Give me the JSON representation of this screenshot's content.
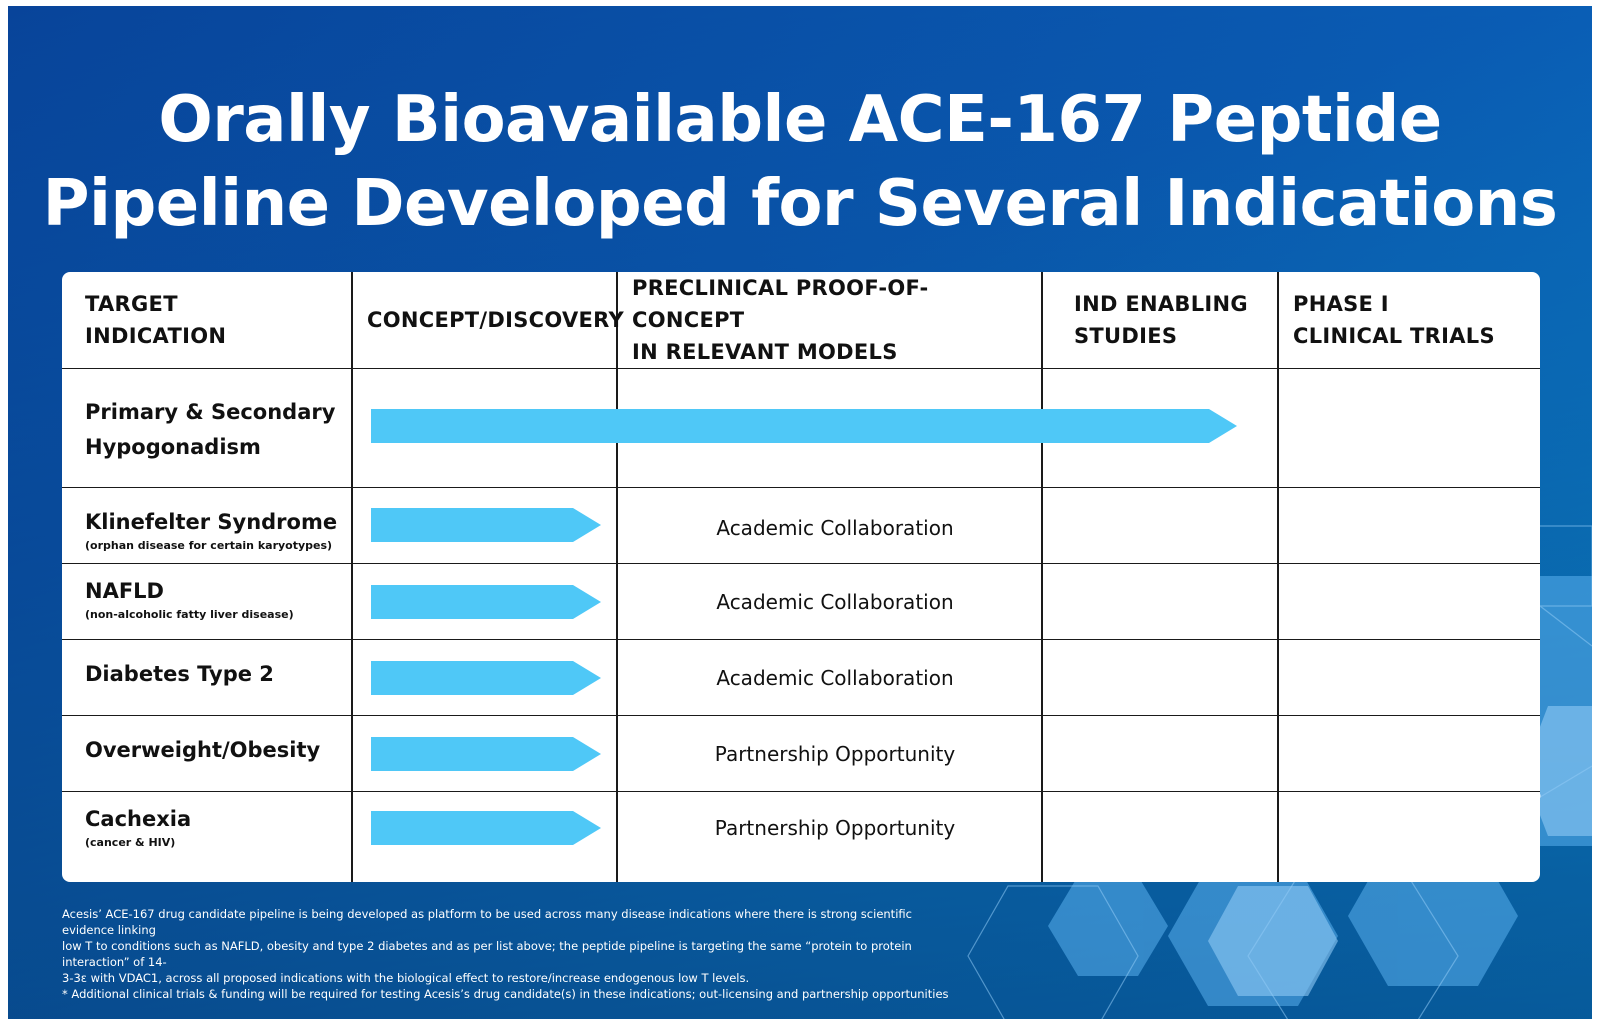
{
  "title": {
    "line1": "Orally Bioavailable ACE-167 Peptide",
    "line2": "Pipeline Developed for Several Indications"
  },
  "table": {
    "headers": [
      {
        "line1": "TARGET",
        "line2": "INDICATION"
      },
      {
        "line1": "CONCEPT/DISCOVERY",
        "line2": ""
      },
      {
        "line1": "PRECLINICAL PROOF-OF-CONCEPT",
        "line2": "IN RELEVANT MODELS"
      },
      {
        "line1": "IND ENABLING",
        "line2": "STUDIES"
      },
      {
        "line1": "PHASE I",
        "line2": "CLINICAL TRIALS"
      }
    ],
    "rows": [
      {
        "name_line1": "Primary & Secondary",
        "name_line2": "Hypogonadism",
        "sub": "",
        "progress_stage": "IND ENABLING STUDIES",
        "note": ""
      },
      {
        "name_line1": "Klinefelter Syndrome",
        "name_line2": "",
        "sub": "(orphan disease for certain karyotypes)",
        "progress_stage": "CONCEPT/DISCOVERY",
        "note": "Academic Collaboration"
      },
      {
        "name_line1": "NAFLD",
        "name_line2": "",
        "sub": "(non-alcoholic fatty liver disease)",
        "progress_stage": "CONCEPT/DISCOVERY",
        "note": "Academic Collaboration"
      },
      {
        "name_line1": "Diabetes Type 2",
        "name_line2": "",
        "sub": "",
        "progress_stage": "CONCEPT/DISCOVERY",
        "note": "Academic Collaboration"
      },
      {
        "name_line1": "Overweight/Obesity",
        "name_line2": "",
        "sub": "",
        "progress_stage": "CONCEPT/DISCOVERY",
        "note": "Partnership Opportunity"
      },
      {
        "name_line1": "Cachexia",
        "name_line2": "",
        "sub": "(cancer & HIV)",
        "progress_stage": "CONCEPT/DISCOVERY",
        "note": "Partnership Opportunity"
      }
    ]
  },
  "footnote": {
    "line1": "Acesis’ ACE-167 drug candidate pipeline is being developed as platform to be used across many disease indications where there is strong scientific evidence linking",
    "line2": "low T to conditions such as NAFLD, obesity and type 2 diabetes and as per list above; the peptide pipeline is targeting the same “protein to protein interaction” of 14-",
    "line3": "3-3ε with VDAC1, across all proposed indications with the biological effect to restore/increase endogenous low T levels.",
    "line4": "* Additional clinical trials & funding will be required for testing Acesis’s drug candidate(s) in these indications; out-licensing and partnership opportunities"
  },
  "colors": {
    "background_top": "#0a5cb4",
    "background_right": "#0aa4ea",
    "arrow": "#4fc8f7",
    "table_bg": "#ffffff",
    "text_dark": "#111111"
  }
}
